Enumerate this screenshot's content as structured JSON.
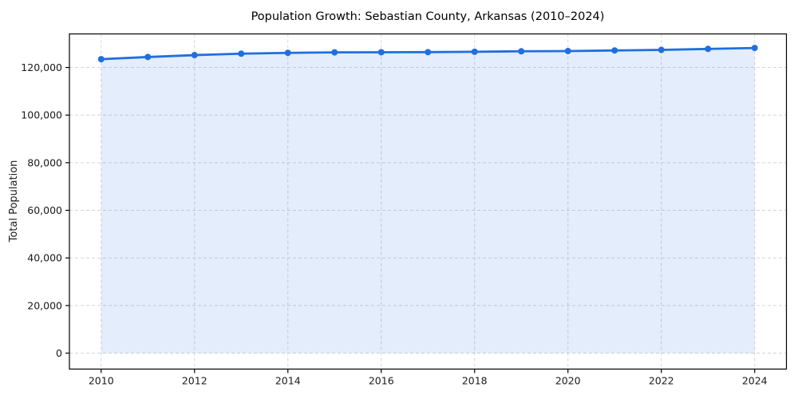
{
  "chart_data": {
    "type": "line",
    "title": "Population Growth: Sebastian County, Arkansas (2010–2024)",
    "xlabel": "",
    "ylabel": "Total Population",
    "x": [
      2010,
      2011,
      2012,
      2013,
      2014,
      2015,
      2016,
      2017,
      2018,
      2019,
      2020,
      2021,
      2022,
      2023,
      2024
    ],
    "series": [
      {
        "name": "Total Population",
        "values": [
          123500,
          124400,
          125200,
          125800,
          126150,
          126350,
          126400,
          126450,
          126600,
          126800,
          126900,
          127150,
          127400,
          127800,
          128200
        ]
      }
    ],
    "xticks": [
      2010,
      2012,
      2014,
      2016,
      2018,
      2020,
      2022,
      2024
    ],
    "yticks": [
      0,
      20000,
      40000,
      60000,
      80000,
      100000,
      120000
    ],
    "xlim": [
      2009.32,
      2024.68
    ],
    "ylim": [
      -6700,
      134100
    ],
    "grid": true,
    "grid_style": "dashed",
    "legend_position": "none",
    "line_color": "#1f6fe0",
    "marker": "circle",
    "marker_color": "#1f6fe0",
    "area_fill": true,
    "area_fill_color": "rgba(31, 111, 224, 0.12)",
    "grid_color": "#d5d5d5",
    "spine_color": "#000000",
    "background": "#ffffff"
  }
}
